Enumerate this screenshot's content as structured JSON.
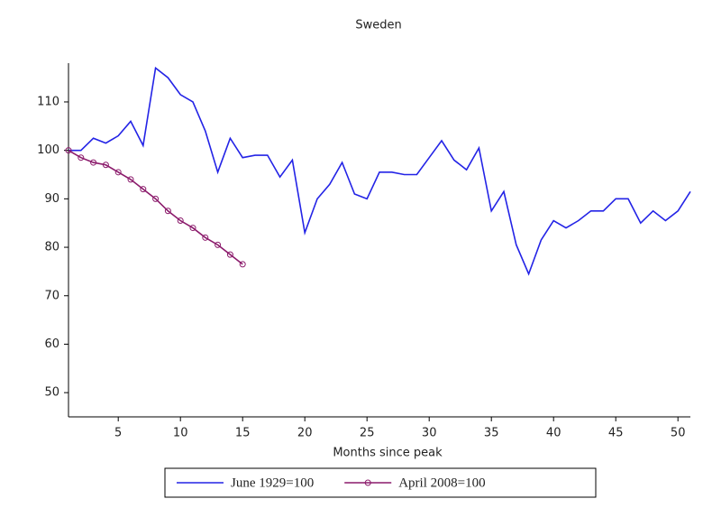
{
  "chart_data": {
    "type": "line",
    "title": "Sweden",
    "x_label": "Months since peak",
    "x": [
      1,
      2,
      3,
      4,
      5,
      6,
      7,
      8,
      9,
      10,
      11,
      12,
      13,
      14,
      15,
      16,
      17,
      18,
      19,
      20,
      21,
      22,
      23,
      24,
      25,
      26,
      27,
      28,
      29,
      30,
      31,
      32,
      33,
      34,
      35,
      36,
      37,
      38,
      39,
      40,
      41,
      42,
      43,
      44,
      45,
      46,
      47,
      48,
      49,
      50,
      51
    ],
    "series": [
      {
        "name": "June 1929=100",
        "color": "#2323e6",
        "marker": false,
        "values": [
          100,
          100,
          102.5,
          101.5,
          103,
          106,
          101,
          117,
          115,
          111.5,
          110,
          104,
          95.5,
          102.5,
          98.5,
          99,
          99,
          94.5,
          98,
          83,
          90,
          93,
          97.5,
          91,
          90,
          95.5,
          95.5,
          95,
          95,
          98.5,
          102,
          98,
          96,
          100.5,
          87.5,
          91.5,
          80.5,
          74.5,
          81.5,
          85.5,
          84,
          85.5,
          87.5,
          87.5,
          90,
          90,
          85,
          87.5,
          85.5,
          87.5,
          91.5
        ]
      },
      {
        "name": "April 2008=100",
        "color": "#8b1a6b",
        "marker": true,
        "values": [
          100,
          98.5,
          97.5,
          97,
          95.5,
          94,
          92,
          90,
          87.5,
          85.5,
          84,
          82,
          80.5,
          78.5,
          76.5,
          null,
          null,
          null,
          null,
          null,
          null,
          null,
          null,
          null,
          null,
          null,
          null,
          null,
          null,
          null,
          null,
          null,
          null,
          null,
          null,
          null,
          null,
          null,
          null,
          null,
          null,
          null,
          null,
          null,
          null,
          null,
          null,
          null,
          null,
          null,
          null
        ]
      }
    ],
    "xlim": [
      1,
      51
    ],
    "ylim": [
      45,
      118
    ],
    "xticks": [
      5,
      10,
      15,
      20,
      25,
      30,
      35,
      40,
      45,
      50
    ],
    "yticks": [
      50,
      60,
      70,
      80,
      90,
      100,
      110
    ],
    "legend": "bottom"
  }
}
